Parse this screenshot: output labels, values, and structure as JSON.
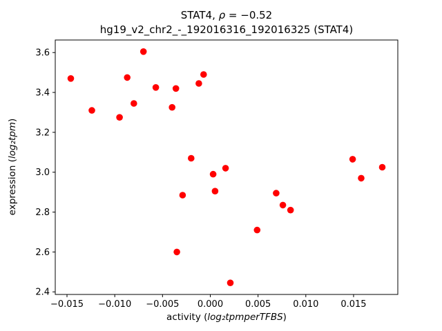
{
  "chart_data": {
    "type": "scatter",
    "title": {
      "prefix": "STAT4, ",
      "math": "ρ",
      "suffix": " = −0.52"
    },
    "subtitle": "hg19_v2_chr2_-_192016316_192016325 (STAT4)",
    "xlabel": {
      "prefix": "activity (",
      "math": "log₂tpmperTFBS",
      "suffix": ")"
    },
    "ylabel": {
      "prefix": "expression (",
      "math": "log₂tpm",
      "suffix": ")"
    },
    "marker_color": "#ff0000",
    "background_color": "#ffffff",
    "grid": false,
    "legend": "none",
    "xlim": [
      -0.01623,
      0.01963
    ],
    "ylim": [
      2.387,
      3.663
    ],
    "xticks": [
      -0.015,
      -0.01,
      -0.005,
      0.0,
      0.005,
      0.01,
      0.015
    ],
    "xtick_labels": [
      "−0.015",
      "−0.010",
      "−0.005",
      "0.000",
      "0.005",
      "0.010",
      "0.015"
    ],
    "yticks": [
      2.4,
      2.6,
      2.8,
      3.0,
      3.2,
      3.4,
      3.6
    ],
    "ytick_labels": [
      "2.4",
      "2.6",
      "2.8",
      "3.0",
      "3.2",
      "3.4",
      "3.6"
    ],
    "points": [
      [
        -0.0146,
        3.47
      ],
      [
        -0.0124,
        3.31
      ],
      [
        -0.0095,
        3.275
      ],
      [
        -0.0087,
        3.475
      ],
      [
        -0.008,
        3.345
      ],
      [
        -0.007,
        3.605
      ],
      [
        -0.0057,
        3.425
      ],
      [
        -0.004,
        3.325
      ],
      [
        -0.0036,
        3.42
      ],
      [
        -0.0035,
        2.6
      ],
      [
        -0.0029,
        2.885
      ],
      [
        -0.002,
        3.07
      ],
      [
        -0.0012,
        3.445
      ],
      [
        -0.0007,
        3.49
      ],
      [
        0.0003,
        2.99
      ],
      [
        0.0005,
        2.905
      ],
      [
        0.0016,
        3.02
      ],
      [
        0.0021,
        2.445
      ],
      [
        0.0049,
        2.71
      ],
      [
        0.0069,
        2.895
      ],
      [
        0.0076,
        2.835
      ],
      [
        0.0084,
        2.81
      ],
      [
        0.0149,
        3.065
      ],
      [
        0.0158,
        2.97
      ],
      [
        0.018,
        3.025
      ]
    ]
  }
}
